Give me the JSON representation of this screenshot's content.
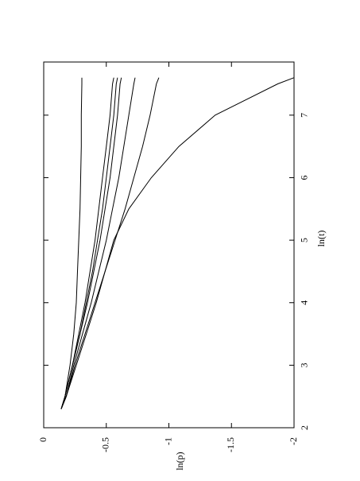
{
  "chart_data": {
    "type": "line",
    "xlabel": "ln(t)",
    "ylabel": "ln(p)",
    "x": [
      2.3,
      2.5,
      3,
      3.5,
      4,
      4.5,
      5,
      5.5,
      6,
      6.5,
      7,
      7.5,
      7.6
    ],
    "series": [
      {
        "color": "#000000",
        "values": [
          -0.14,
          -0.17,
          -0.21,
          -0.24,
          -0.26,
          -0.27,
          -0.28,
          -0.29,
          -0.295,
          -0.3,
          -0.3,
          -0.305,
          -0.305
        ]
      },
      {
        "color": "#000000",
        "values": [
          -0.14,
          -0.17,
          -0.23,
          -0.28,
          -0.33,
          -0.37,
          -0.41,
          -0.44,
          -0.47,
          -0.5,
          -0.53,
          -0.55,
          -0.56
        ]
      },
      {
        "color": "#000000",
        "values": [
          -0.14,
          -0.17,
          -0.23,
          -0.29,
          -0.34,
          -0.39,
          -0.43,
          -0.47,
          -0.5,
          -0.53,
          -0.56,
          -0.58,
          -0.59
        ]
      },
      {
        "color": "#000000",
        "values": [
          -0.14,
          -0.17,
          -0.23,
          -0.29,
          -0.35,
          -0.4,
          -0.45,
          -0.49,
          -0.53,
          -0.56,
          -0.59,
          -0.61,
          -0.62
        ]
      },
      {
        "color": "#000000",
        "values": [
          -0.14,
          -0.18,
          -0.24,
          -0.31,
          -0.38,
          -0.44,
          -0.5,
          -0.55,
          -0.6,
          -0.64,
          -0.68,
          -0.72,
          -0.73
        ]
      },
      {
        "color": "#000000",
        "values": [
          -0.14,
          -0.18,
          -0.25,
          -0.33,
          -0.41,
          -0.49,
          -0.57,
          -0.65,
          -0.72,
          -0.79,
          -0.85,
          -0.9,
          -0.92
        ]
      },
      {
        "color": "#000000",
        "values": [
          -0.14,
          -0.18,
          -0.26,
          -0.34,
          -0.42,
          -0.49,
          -0.56,
          -0.68,
          -0.86,
          -1.08,
          -1.37,
          -1.87,
          -2
        ]
      }
    ],
    "xlim": [
      2,
      7.85
    ],
    "xticks": [
      2,
      3,
      4,
      5,
      6,
      7
    ],
    "ylim": [
      -2,
      0
    ],
    "yticks": [
      0,
      -0.5,
      -1,
      -1.5,
      -2
    ]
  }
}
